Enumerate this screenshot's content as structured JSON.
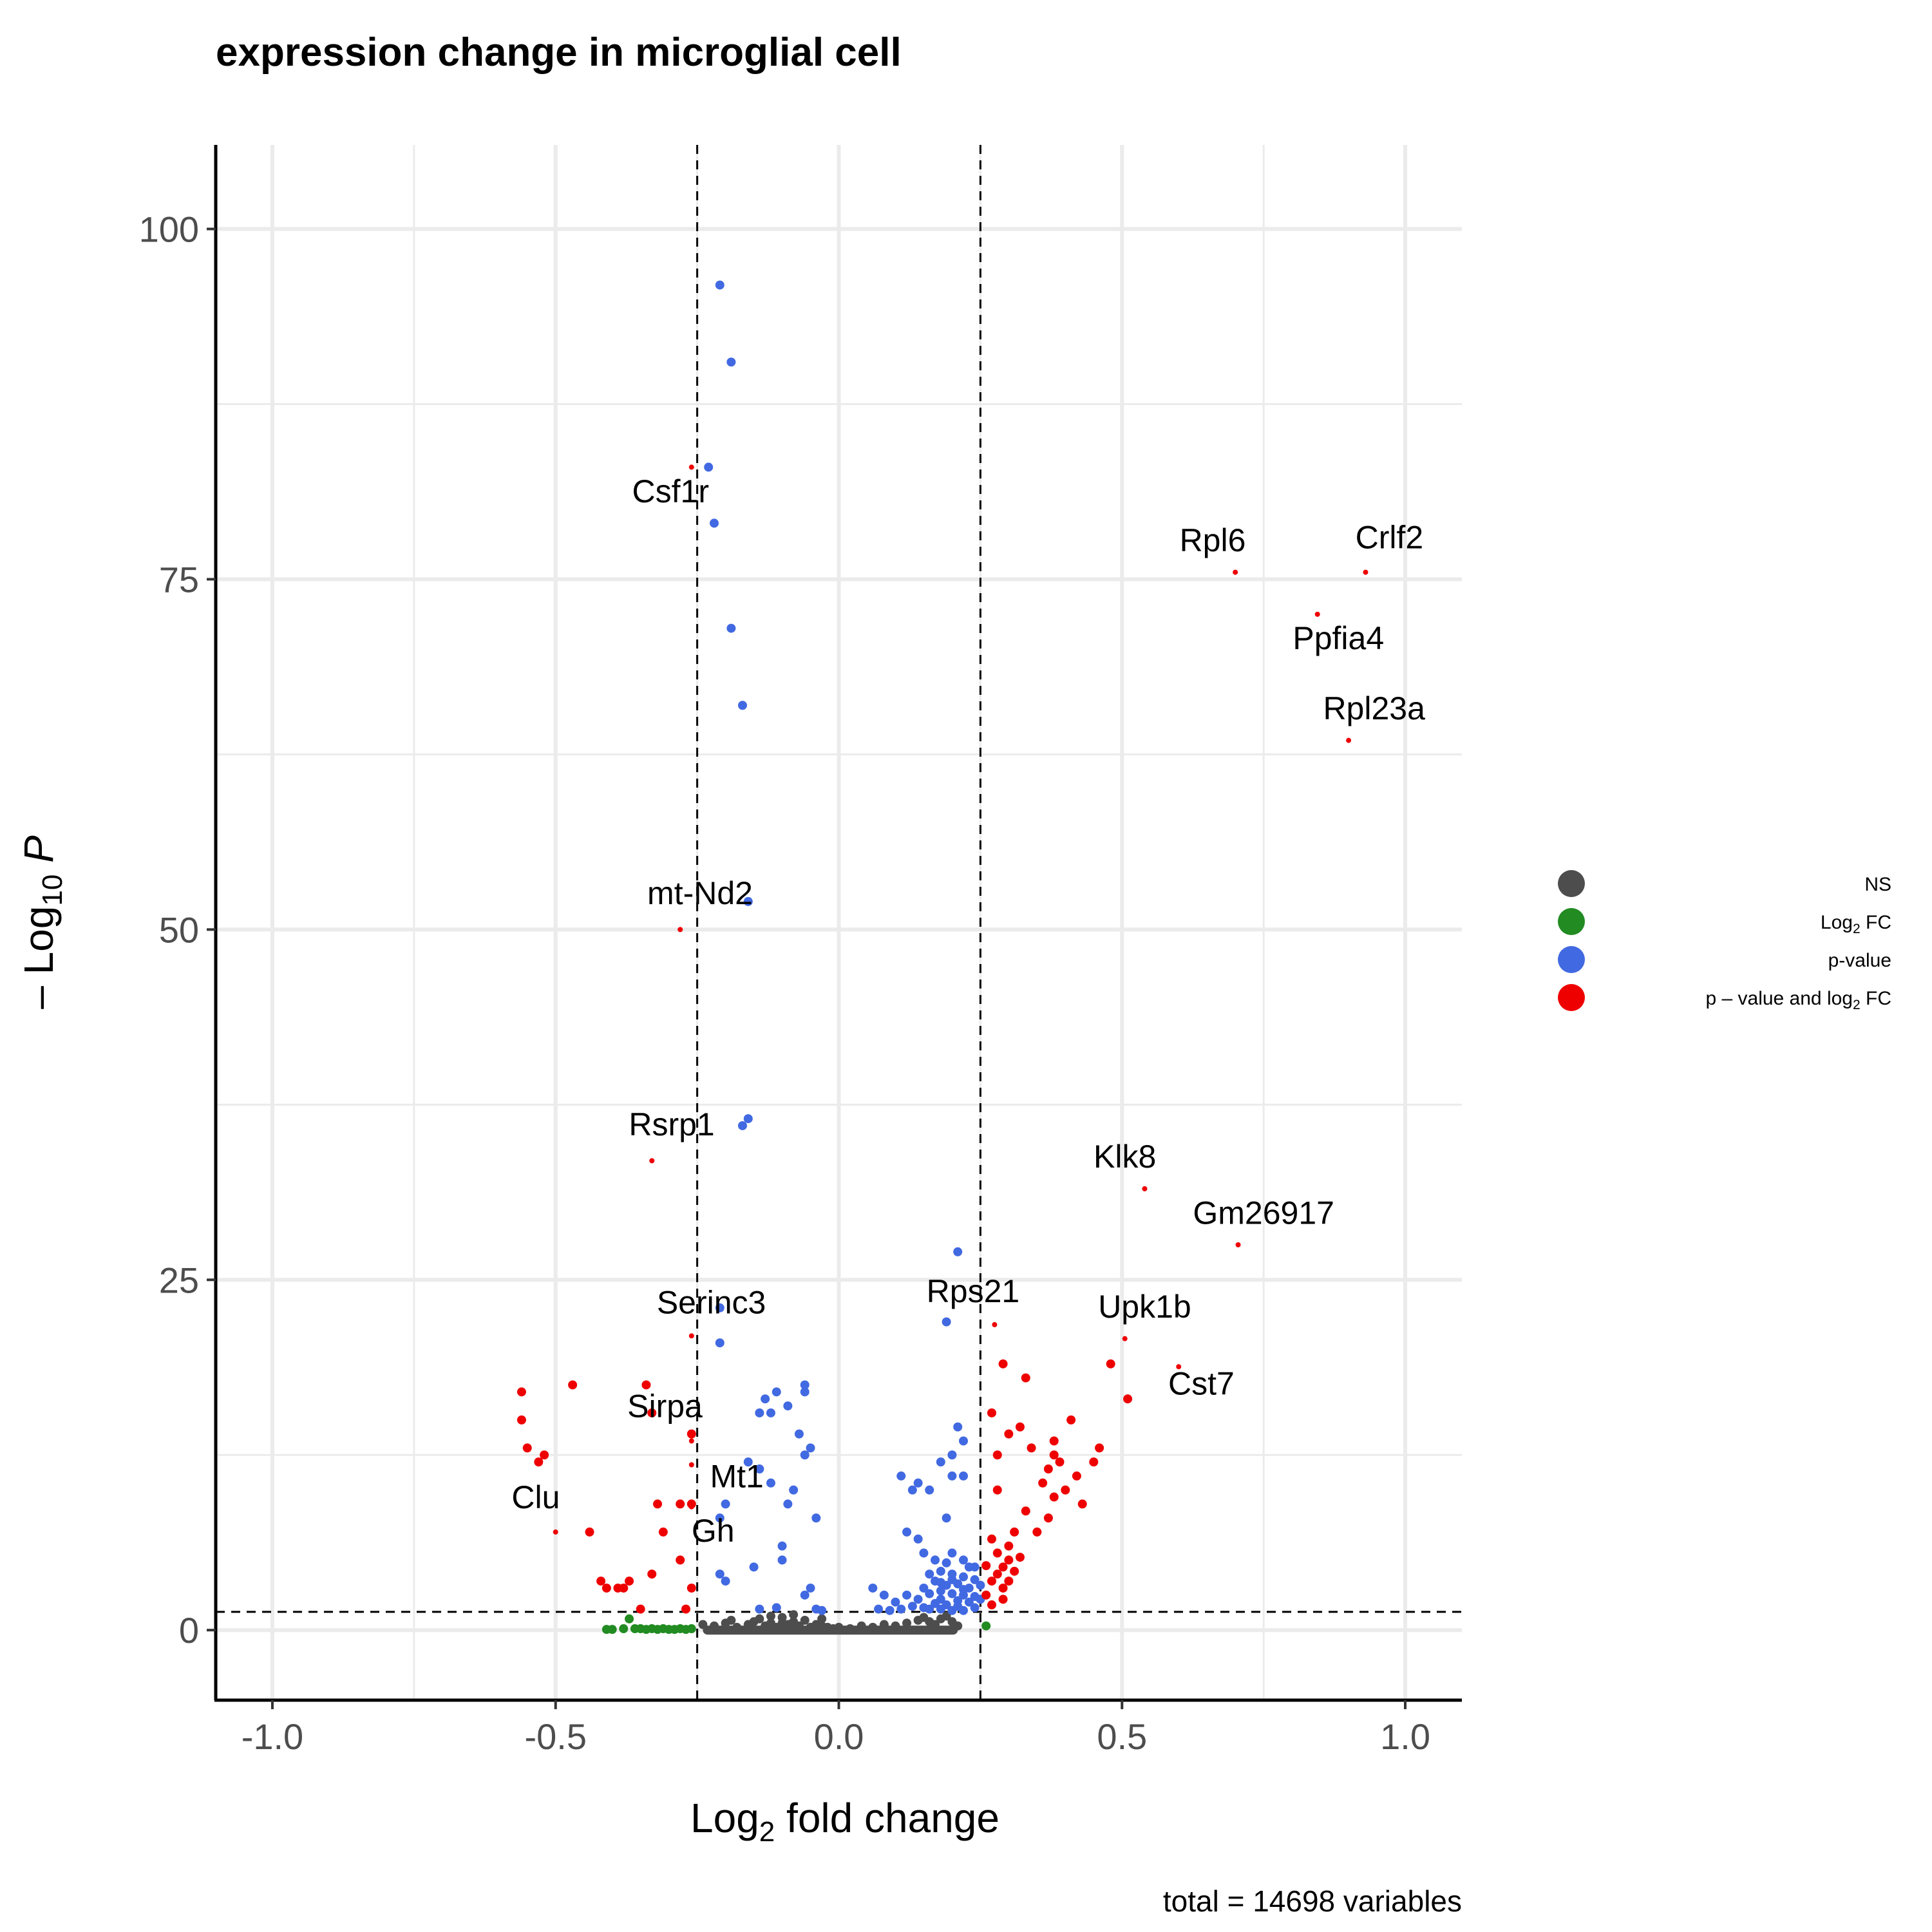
{
  "chart_data": {
    "type": "scatter",
    "title": "expression change in  microglial cell",
    "xlabel": {
      "pre": "Log",
      "sub": "2",
      "post": " fold change"
    },
    "ylabel": {
      "pre": "– Log",
      "sub": "10",
      "post": " P"
    },
    "caption": "total = 14698 variables",
    "xlim": [
      -1.1,
      1.1
    ],
    "ylim": [
      -5,
      106
    ],
    "x_ticks": [
      -1.0,
      -0.5,
      0.0,
      0.5,
      1.0
    ],
    "x_tick_labels": [
      "-1.0",
      "-0.5",
      "0.0",
      "0.5",
      "1.0"
    ],
    "y_ticks": [
      0,
      25,
      50,
      75,
      100
    ],
    "y_tick_labels": [
      "0",
      "25",
      "50",
      "75",
      "100"
    ],
    "x_minor": [
      -0.75,
      -0.25,
      0.25,
      0.75
    ],
    "y_minor": [
      12.5,
      37.5,
      62.5,
      87.5
    ],
    "fc_cutoff": 0.25,
    "p_cutoff": 1.3,
    "grid": true,
    "legend_position": "right",
    "legend": [
      {
        "key": "ns",
        "name": "NS",
        "color": "#4d4d4d"
      },
      {
        "key": "fc",
        "name": {
          "pre": "Log",
          "sub": "2",
          "post": " FC"
        },
        "color": "#228b22"
      },
      {
        "key": "p",
        "name": "p-value",
        "color": "#4169e1"
      },
      {
        "key": "both",
        "name": {
          "pre": "p – value and log",
          "sub": "2",
          "post": " FC"
        },
        "color": "#ee0000"
      }
    ],
    "colors": {
      "ns": "#4d4d4d",
      "fc": "#228b22",
      "p": "#4169e1",
      "both": "#ee0000"
    },
    "series": [
      {
        "key": "ns",
        "points": [
          [
            -0.24,
            0.4
          ],
          [
            -0.22,
            0.3
          ],
          [
            -0.2,
            0.5
          ],
          [
            -0.18,
            0.2
          ],
          [
            -0.16,
            0.4
          ],
          [
            -0.15,
            0.6
          ],
          [
            -0.14,
            0.8
          ],
          [
            -0.13,
            0.3
          ],
          [
            -0.12,
            0.5
          ],
          [
            -0.11,
            0.2
          ],
          [
            -0.1,
            0.9
          ],
          [
            -0.09,
            0.4
          ],
          [
            -0.08,
            0.6
          ],
          [
            -0.07,
            0.3
          ],
          [
            -0.06,
            0.7
          ],
          [
            -0.05,
            0.2
          ],
          [
            -0.04,
            0.4
          ],
          [
            -0.03,
            0.3
          ],
          [
            -0.02,
            0.2
          ],
          [
            -0.01,
            0.1
          ],
          [
            0.0,
            0.2
          ],
          [
            0.02,
            0.1
          ],
          [
            0.04,
            0.3
          ],
          [
            0.06,
            0.2
          ],
          [
            0.08,
            0.4
          ],
          [
            0.1,
            0.3
          ],
          [
            0.12,
            0.5
          ],
          [
            0.14,
            0.7
          ],
          [
            0.15,
            0.9
          ],
          [
            0.16,
            0.6
          ],
          [
            0.17,
            0.4
          ],
          [
            0.18,
            0.8
          ],
          [
            0.19,
            1.0
          ],
          [
            0.2,
            0.6
          ],
          [
            0.21,
            0.3
          ],
          [
            -0.12,
            1.0
          ],
          [
            -0.08,
            1.1
          ],
          [
            -0.03,
            0.8
          ],
          [
            -0.19,
            0.7
          ],
          [
            -0.1,
            0.5
          ]
        ]
      },
      {
        "key": "fc",
        "points": [
          [
            -0.41,
            0.05
          ],
          [
            -0.4,
            0.05
          ],
          [
            -0.38,
            0.1
          ],
          [
            -0.37,
            0.8
          ],
          [
            -0.36,
            0.1
          ],
          [
            -0.35,
            0.1
          ],
          [
            -0.34,
            0.05
          ],
          [
            -0.33,
            0.1
          ],
          [
            -0.32,
            0.05
          ],
          [
            -0.31,
            0.1
          ],
          [
            -0.3,
            0.05
          ],
          [
            -0.29,
            0.05
          ],
          [
            -0.28,
            0.1
          ],
          [
            -0.27,
            0.05
          ],
          [
            -0.26,
            0.1
          ],
          [
            0.26,
            0.3
          ]
        ]
      },
      {
        "key": "p",
        "points": [
          [
            -0.21,
            96
          ],
          [
            -0.19,
            90.5
          ],
          [
            -0.23,
            83
          ],
          [
            -0.22,
            79
          ],
          [
            -0.19,
            71.5
          ],
          [
            -0.17,
            66
          ],
          [
            -0.16,
            52
          ],
          [
            -0.16,
            36.5
          ],
          [
            -0.17,
            36
          ],
          [
            -0.21,
            23
          ],
          [
            -0.21,
            20.5
          ],
          [
            0.21,
            27
          ],
          [
            0.19,
            22
          ],
          [
            -0.13,
            16.5
          ],
          [
            -0.11,
            17
          ],
          [
            -0.06,
            17
          ],
          [
            -0.06,
            17.5
          ],
          [
            -0.09,
            16
          ],
          [
            -0.12,
            15.5
          ],
          [
            -0.14,
            15.5
          ],
          [
            -0.07,
            14
          ],
          [
            -0.05,
            13
          ],
          [
            -0.06,
            12.5
          ],
          [
            -0.16,
            12
          ],
          [
            -0.14,
            11.5
          ],
          [
            -0.08,
            10
          ],
          [
            -0.12,
            10.5
          ],
          [
            -0.09,
            9
          ],
          [
            -0.2,
            9
          ],
          [
            -0.04,
            8
          ],
          [
            -0.21,
            8
          ],
          [
            -0.1,
            6
          ],
          [
            -0.1,
            5
          ],
          [
            -0.21,
            4
          ],
          [
            -0.05,
            3
          ],
          [
            -0.06,
            2.5
          ],
          [
            -0.15,
            4.5
          ],
          [
            -0.2,
            3.5
          ],
          [
            0.21,
            14.5
          ],
          [
            0.22,
            13.5
          ],
          [
            0.2,
            12.5
          ],
          [
            0.18,
            12
          ],
          [
            0.14,
            10.5
          ],
          [
            0.13,
            10
          ],
          [
            0.11,
            11
          ],
          [
            0.16,
            10
          ],
          [
            0.2,
            11
          ],
          [
            0.22,
            11
          ],
          [
            0.19,
            8
          ],
          [
            0.12,
            7
          ],
          [
            0.14,
            6.5
          ],
          [
            0.15,
            5.5
          ],
          [
            0.17,
            5
          ],
          [
            0.2,
            5.5
          ],
          [
            0.19,
            4.8
          ],
          [
            0.22,
            5
          ],
          [
            0.23,
            4.5
          ],
          [
            0.24,
            4.5
          ],
          [
            0.16,
            4
          ],
          [
            0.18,
            4.2
          ],
          [
            0.2,
            4
          ],
          [
            0.22,
            3.8
          ],
          [
            0.24,
            3.6
          ],
          [
            0.17,
            3.5
          ],
          [
            0.19,
            3.2
          ],
          [
            0.21,
            3.3
          ],
          [
            0.23,
            3
          ],
          [
            0.15,
            3
          ],
          [
            0.18,
            2.8
          ],
          [
            0.2,
            2.6
          ],
          [
            0.22,
            2.5
          ],
          [
            0.24,
            2.4
          ],
          [
            0.16,
            2.6
          ],
          [
            0.18,
            2.2
          ],
          [
            0.21,
            2.1
          ],
          [
            0.23,
            2
          ],
          [
            0.14,
            2.2
          ],
          [
            0.17,
            1.9
          ],
          [
            0.19,
            1.8
          ],
          [
            0.21,
            1.7
          ],
          [
            0.24,
            1.6
          ],
          [
            0.13,
            1.7
          ],
          [
            0.16,
            1.5
          ],
          [
            0.18,
            1.5
          ],
          [
            0.2,
            1.4
          ],
          [
            0.22,
            1.4
          ],
          [
            0.06,
            3
          ],
          [
            0.08,
            2.5
          ],
          [
            0.1,
            2
          ],
          [
            0.12,
            2.5
          ],
          [
            0.11,
            1.5
          ],
          [
            0.09,
            1.4
          ],
          [
            0.15,
            1.6
          ],
          [
            0.25,
            2.2
          ],
          [
            0.25,
            3.2
          ],
          [
            0.07,
            1.5
          ],
          [
            0.2,
            3.6
          ],
          [
            0.22,
            2.9
          ],
          [
            0.18,
            3.4
          ],
          [
            -0.04,
            1.5
          ],
          [
            -0.03,
            1.4
          ],
          [
            -0.11,
            1.6
          ],
          [
            -0.14,
            1.5
          ]
        ]
      },
      {
        "key": "both",
        "points": [
          [
            -0.56,
            17
          ],
          [
            -0.56,
            15
          ],
          [
            -0.55,
            13
          ],
          [
            -0.52,
            12.5
          ],
          [
            -0.53,
            12
          ],
          [
            -0.47,
            17.5
          ],
          [
            -0.34,
            17.5
          ],
          [
            -0.33,
            15.5
          ],
          [
            -0.26,
            14
          ],
          [
            -0.28,
            9
          ],
          [
            -0.32,
            9
          ],
          [
            -0.26,
            9
          ],
          [
            -0.44,
            7
          ],
          [
            -0.41,
            3
          ],
          [
            -0.42,
            3.5
          ],
          [
            -0.38,
            3
          ],
          [
            -0.37,
            3.5
          ],
          [
            -0.39,
            3
          ],
          [
            -0.35,
            1.5
          ],
          [
            -0.27,
            1.5
          ],
          [
            -0.26,
            3
          ],
          [
            -0.33,
            4
          ],
          [
            -0.28,
            5
          ],
          [
            -0.31,
            7
          ],
          [
            0.27,
            15.5
          ],
          [
            0.29,
            19
          ],
          [
            0.33,
            18
          ],
          [
            0.3,
            14
          ],
          [
            0.32,
            14.5
          ],
          [
            0.34,
            13
          ],
          [
            0.38,
            12.5
          ],
          [
            0.37,
            11.5
          ],
          [
            0.36,
            10.5
          ],
          [
            0.4,
            10
          ],
          [
            0.42,
            11
          ],
          [
            0.46,
            13
          ],
          [
            0.45,
            12
          ],
          [
            0.43,
            9
          ],
          [
            0.38,
            9.5
          ],
          [
            0.37,
            8
          ],
          [
            0.35,
            7
          ],
          [
            0.33,
            8.5
          ],
          [
            0.31,
            7
          ],
          [
            0.3,
            6
          ],
          [
            0.28,
            10
          ],
          [
            0.28,
            12.5
          ],
          [
            0.27,
            6.5
          ],
          [
            0.28,
            5.5
          ],
          [
            0.29,
            4.5
          ],
          [
            0.3,
            5
          ],
          [
            0.27,
            3.5
          ],
          [
            0.26,
            2.5
          ],
          [
            0.27,
            1.8
          ],
          [
            0.29,
            3
          ],
          [
            0.3,
            3.5
          ],
          [
            0.31,
            4.2
          ],
          [
            0.26,
            4.6
          ],
          [
            0.28,
            4
          ],
          [
            0.32,
            5.2
          ],
          [
            0.29,
            2.2
          ],
          [
            0.48,
            19
          ],
          [
            0.51,
            16.5
          ],
          [
            0.41,
            15
          ],
          [
            0.38,
            13.5
          ],
          [
            0.39,
            12
          ]
        ]
      }
    ],
    "labels": [
      {
        "text": "Csf1r",
        "x": -0.26,
        "y": 83,
        "lx": -0.297,
        "ly": 80.5
      },
      {
        "text": "Rpl6",
        "x": 0.7,
        "y": 75.5,
        "lx": 0.66,
        "ly": 77
      },
      {
        "text": "Crlf2",
        "x": 0.93,
        "y": 75.5,
        "lx": 0.972,
        "ly": 77.2
      },
      {
        "text": "Ppfia4",
        "x": 0.845,
        "y": 72.5,
        "lx": 0.882,
        "ly": 70
      },
      {
        "text": "Rpl23a",
        "x": 0.9,
        "y": 63.5,
        "lx": 0.945,
        "ly": 65
      },
      {
        "text": "mt-Nd2",
        "x": -0.28,
        "y": 50,
        "lx": -0.245,
        "ly": 51.8
      },
      {
        "text": "Rsrp1",
        "x": -0.33,
        "y": 33.5,
        "lx": -0.295,
        "ly": 35.3
      },
      {
        "text": "Klk8",
        "x": 0.54,
        "y": 31.5,
        "lx": 0.505,
        "ly": 33
      },
      {
        "text": "Gm26917",
        "x": 0.705,
        "y": 27.5,
        "lx": 0.75,
        "ly": 29
      },
      {
        "text": "Serinc3",
        "x": -0.26,
        "y": 21,
        "lx": -0.225,
        "ly": 22.6
      },
      {
        "text": "Rps21",
        "x": 0.275,
        "y": 21.8,
        "lx": 0.237,
        "ly": 23.4
      },
      {
        "text": "Upk1b",
        "x": 0.505,
        "y": 20.8,
        "lx": 0.54,
        "ly": 22.3
      },
      {
        "text": "Cst7",
        "x": 0.6,
        "y": 18.8,
        "lx": 0.64,
        "ly": 16.8
      },
      {
        "text": "Sirpa",
        "x": -0.26,
        "y": 13.5,
        "lx": -0.307,
        "ly": 15.2
      },
      {
        "text": "Mt1",
        "x": -0.26,
        "y": 11.8,
        "lx": -0.18,
        "ly": 10.2
      },
      {
        "text": "Clu",
        "x": -0.5,
        "y": 7,
        "lx": -0.535,
        "ly": 8.7
      },
      {
        "text": "Gh",
        "x": -0.26,
        "y": 8.8,
        "lx": -0.222,
        "ly": 6.3
      }
    ]
  }
}
